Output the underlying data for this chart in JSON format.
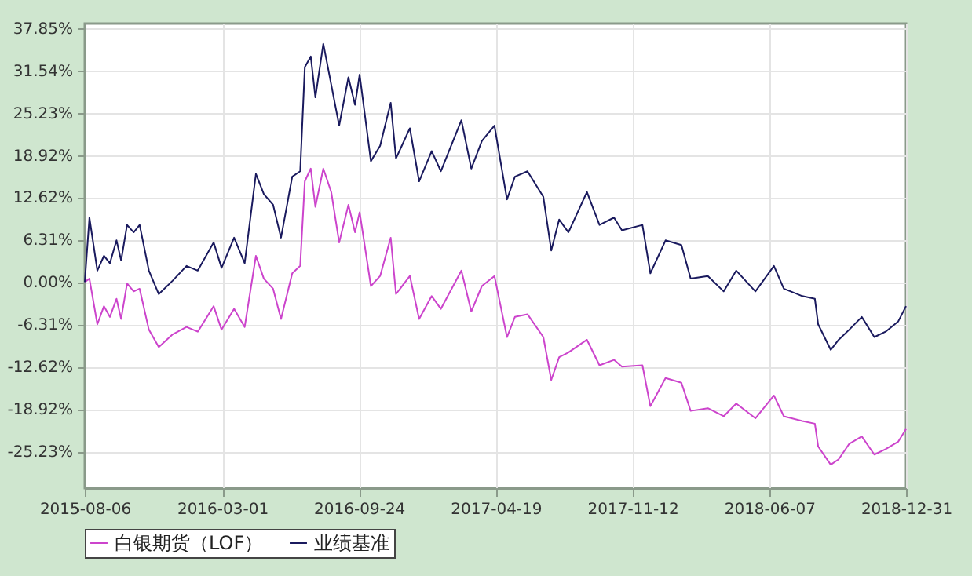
{
  "chart_data": {
    "type": "line",
    "x": [
      "2015-08-06",
      "2015-08-13",
      "2015-08-25",
      "2015-09-04",
      "2015-09-13",
      "2015-09-23",
      "2015-09-30",
      "2015-10-09",
      "2015-10-19",
      "2015-10-28",
      "2015-11-11",
      "2015-11-26",
      "2015-12-17",
      "2016-01-07",
      "2016-01-24",
      "2016-02-17",
      "2016-02-29",
      "2016-03-19",
      "2016-04-04",
      "2016-04-21",
      "2016-05-03",
      "2016-05-17",
      "2016-05-29",
      "2016-06-15",
      "2016-06-27",
      "2016-07-04",
      "2016-07-13",
      "2016-07-20",
      "2016-08-01",
      "2016-08-13",
      "2016-08-25",
      "2016-09-08",
      "2016-09-18",
      "2016-09-25",
      "2016-10-12",
      "2016-10-26",
      "2016-11-11",
      "2016-11-19",
      "2016-12-10",
      "2016-12-24",
      "2017-01-12",
      "2017-01-26",
      "2017-02-26",
      "2017-03-13",
      "2017-03-29",
      "2017-04-17",
      "2017-05-06",
      "2017-05-18",
      "2017-06-06",
      "2017-06-30",
      "2017-07-12",
      "2017-07-24",
      "2017-08-07",
      "2017-09-04",
      "2017-09-23",
      "2017-10-15",
      "2017-10-27",
      "2017-11-27",
      "2017-12-09",
      "2018-01-01",
      "2018-01-25",
      "2018-02-08",
      "2018-03-06",
      "2018-03-30",
      "2018-04-18",
      "2018-05-17",
      "2018-06-14",
      "2018-06-29",
      "2018-07-27",
      "2018-08-15",
      "2018-08-20",
      "2018-09-08",
      "2018-09-20",
      "2018-10-06",
      "2018-10-25",
      "2018-11-13",
      "2018-11-30",
      "2018-12-19",
      "2018-12-31"
    ],
    "series": [
      {
        "name": "白银期货（LOF）",
        "color": "#cc44cc",
        "values": [
          0,
          0.5,
          -6.3,
          -3.6,
          -5.2,
          -2.5,
          -5.5,
          -0.2,
          -1.4,
          -1.0,
          -7.1,
          -9.7,
          -7.8,
          -6.7,
          -7.4,
          -3.6,
          -7.1,
          -4.0,
          -6.7,
          3.9,
          0.5,
          -1.0,
          -5.5,
          1.3,
          2.4,
          15.0,
          16.9,
          11.2,
          16.9,
          13.4,
          5.9,
          11.5,
          7.4,
          10.4,
          -0.6,
          0.9,
          6.6,
          -1.8,
          0.9,
          -5.5,
          -2.1,
          -4.0,
          1.7,
          -4.4,
          -0.6,
          0.9,
          -8.2,
          -5.2,
          -4.8,
          -8.2,
          -14.6,
          -11.2,
          -10.5,
          -8.6,
          -12.4,
          -11.6,
          -12.6,
          -12.4,
          -18.5,
          -14.3,
          -15.0,
          -19.2,
          -18.8,
          -20.0,
          -18.1,
          -20.3,
          -16.9,
          -20.0,
          -20.7,
          -21.1,
          -24.5,
          -27.2,
          -26.4,
          -24.1,
          -23.0,
          -25.7,
          -24.9,
          -23.8,
          -21.9
        ]
      },
      {
        "name": "业绩基准",
        "color": "#1a1a5e",
        "values": [
          0,
          9.6,
          1.7,
          3.9,
          2.8,
          6.2,
          3.2,
          8.5,
          7.4,
          8.5,
          1.7,
          -1.8,
          0.2,
          2.4,
          1.7,
          5.9,
          2.1,
          6.6,
          2.8,
          16.1,
          13.1,
          11.5,
          6.6,
          15.7,
          16.5,
          32.0,
          33.6,
          27.5,
          35.5,
          29.4,
          23.3,
          30.5,
          26.4,
          30.9,
          18.0,
          20.3,
          26.7,
          18.4,
          22.9,
          15.0,
          19.5,
          16.5,
          24.1,
          16.9,
          21.0,
          23.3,
          12.3,
          15.7,
          16.5,
          12.7,
          4.7,
          9.3,
          7.4,
          13.4,
          8.5,
          9.6,
          7.7,
          8.5,
          1.3,
          6.2,
          5.5,
          0.5,
          0.9,
          -1.4,
          1.7,
          -1.4,
          2.4,
          -1.0,
          -2.1,
          -2.5,
          -6.3,
          -10.1,
          -8.6,
          -7.1,
          -5.2,
          -8.2,
          -7.4,
          -5.9,
          -3.6
        ]
      }
    ],
    "xlim": [
      "2015-08-06",
      "2018-12-31"
    ],
    "xticks": [
      "2015-08-06",
      "2016-03-01",
      "2016-09-24",
      "2017-04-19",
      "2017-11-12",
      "2018-06-07",
      "2018-12-31"
    ],
    "ylim": [
      -30.7,
      38.5
    ],
    "yticks": [
      {
        "value": 37.85,
        "label": "37.85%"
      },
      {
        "value": 31.54,
        "label": "31.54%"
      },
      {
        "value": 25.23,
        "label": "25.23%"
      },
      {
        "value": 18.92,
        "label": "18.92%"
      },
      {
        "value": 12.62,
        "label": "12.62%"
      },
      {
        "value": 6.31,
        "label": "6.31%"
      },
      {
        "value": 0,
        "label": "0.00%"
      },
      {
        "value": -6.31,
        "label": "-6.31%"
      },
      {
        "value": -12.62,
        "label": "-12.62%"
      },
      {
        "value": -18.92,
        "label": "-18.92%"
      },
      {
        "value": -25.23,
        "label": "-25.23%"
      }
    ],
    "grid": true,
    "legend": "bottom",
    "line_style": "solid"
  }
}
